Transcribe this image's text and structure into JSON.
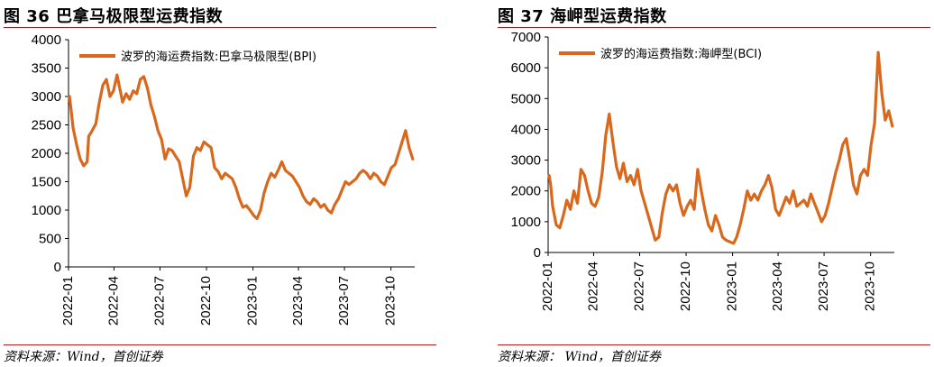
{
  "figures": [
    {
      "title": "图 36 巴拿马极限型运费指数",
      "source": "资料来源：Wind，首创证券"
    },
    {
      "title": "图 37 海岬型运费指数",
      "source": "资料来源： Wind，首创证券"
    }
  ],
  "chart_data": [
    {
      "type": "line",
      "legend_placement": "top-left",
      "series": [
        {
          "name": "波罗的海运费指数:巴拿马极限型(BPI)",
          "color": "#d9671c",
          "points": [
            [
              "2022-01-03",
              3000
            ],
            [
              "2022-01-06",
              2780
            ],
            [
              "2022-01-10",
              2450
            ],
            [
              "2022-01-17",
              2150
            ],
            [
              "2022-01-24",
              1900
            ],
            [
              "2022-01-31",
              1780
            ],
            [
              "2022-02-07",
              1850
            ],
            [
              "2022-02-10",
              2300
            ],
            [
              "2022-02-17",
              2400
            ],
            [
              "2022-02-24",
              2520
            ],
            [
              "2022-03-03",
              2900
            ],
            [
              "2022-03-10",
              3200
            ],
            [
              "2022-03-17",
              3300
            ],
            [
              "2022-03-24",
              3000
            ],
            [
              "2022-03-31",
              3100
            ],
            [
              "2022-04-07",
              3380
            ],
            [
              "2022-04-11",
              3200
            ],
            [
              "2022-04-18",
              2900
            ],
            [
              "2022-04-25",
              3050
            ],
            [
              "2022-05-02",
              2950
            ],
            [
              "2022-05-09",
              3100
            ],
            [
              "2022-05-16",
              3050
            ],
            [
              "2022-05-23",
              3300
            ],
            [
              "2022-05-30",
              3350
            ],
            [
              "2022-06-06",
              3150
            ],
            [
              "2022-06-13",
              2850
            ],
            [
              "2022-06-20",
              2650
            ],
            [
              "2022-06-27",
              2400
            ],
            [
              "2022-07-04",
              2250
            ],
            [
              "2022-07-11",
              1900
            ],
            [
              "2022-07-18",
              2080
            ],
            [
              "2022-07-25",
              2050
            ],
            [
              "2022-08-01",
              1950
            ],
            [
              "2022-08-08",
              1850
            ],
            [
              "2022-08-15",
              1550
            ],
            [
              "2022-08-22",
              1250
            ],
            [
              "2022-08-29",
              1400
            ],
            [
              "2022-09-05",
              1950
            ],
            [
              "2022-09-12",
              2100
            ],
            [
              "2022-09-19",
              2050
            ],
            [
              "2022-09-26",
              2200
            ],
            [
              "2022-10-03",
              2150
            ],
            [
              "2022-10-10",
              2100
            ],
            [
              "2022-10-17",
              1750
            ],
            [
              "2022-10-24",
              1680
            ],
            [
              "2022-10-31",
              1550
            ],
            [
              "2022-11-07",
              1650
            ],
            [
              "2022-11-14",
              1600
            ],
            [
              "2022-11-21",
              1550
            ],
            [
              "2022-11-28",
              1400
            ],
            [
              "2022-12-05",
              1200
            ],
            [
              "2022-12-12",
              1050
            ],
            [
              "2022-12-19",
              1080
            ],
            [
              "2022-12-26",
              1000
            ],
            [
              "2023-01-03",
              900
            ],
            [
              "2023-01-09",
              850
            ],
            [
              "2023-01-16",
              1000
            ],
            [
              "2023-01-23",
              1300
            ],
            [
              "2023-01-30",
              1500
            ],
            [
              "2023-02-06",
              1650
            ],
            [
              "2023-02-13",
              1580
            ],
            [
              "2023-02-20",
              1700
            ],
            [
              "2023-02-27",
              1850
            ],
            [
              "2023-03-06",
              1700
            ],
            [
              "2023-03-13",
              1650
            ],
            [
              "2023-03-20",
              1600
            ],
            [
              "2023-03-27",
              1500
            ],
            [
              "2023-04-03",
              1400
            ],
            [
              "2023-04-10",
              1250
            ],
            [
              "2023-04-17",
              1150
            ],
            [
              "2023-04-24",
              1100
            ],
            [
              "2023-05-01",
              1200
            ],
            [
              "2023-05-08",
              1150
            ],
            [
              "2023-05-15",
              1050
            ],
            [
              "2023-05-22",
              1100
            ],
            [
              "2023-05-29",
              1000
            ],
            [
              "2023-06-05",
              950
            ],
            [
              "2023-06-12",
              1100
            ],
            [
              "2023-06-19",
              1200
            ],
            [
              "2023-06-26",
              1350
            ],
            [
              "2023-07-03",
              1500
            ],
            [
              "2023-07-10",
              1450
            ],
            [
              "2023-07-17",
              1500
            ],
            [
              "2023-07-24",
              1550
            ],
            [
              "2023-07-31",
              1650
            ],
            [
              "2023-08-07",
              1700
            ],
            [
              "2023-08-14",
              1650
            ],
            [
              "2023-08-21",
              1550
            ],
            [
              "2023-08-28",
              1650
            ],
            [
              "2023-09-04",
              1600
            ],
            [
              "2023-09-11",
              1500
            ],
            [
              "2023-09-18",
              1450
            ],
            [
              "2023-09-25",
              1600
            ],
            [
              "2023-10-02",
              1750
            ],
            [
              "2023-10-09",
              1800
            ],
            [
              "2023-10-16",
              2000
            ],
            [
              "2023-10-23",
              2200
            ],
            [
              "2023-10-30",
              2400
            ],
            [
              "2023-11-06",
              2100
            ],
            [
              "2023-11-13",
              1900
            ]
          ]
        }
      ],
      "x_ticks": [
        "2022-01",
        "2022-04",
        "2022-07",
        "2022-10",
        "2023-01",
        "2023-04",
        "2023-07",
        "2023-10"
      ],
      "ylim": [
        0,
        4000
      ],
      "y_ticks": [
        "0",
        "500",
        "1000",
        "1500",
        "2000",
        "2500",
        "3000",
        "3500",
        "4000"
      ]
    },
    {
      "type": "line",
      "legend_placement": "top-left",
      "series": [
        {
          "name": "波罗的海运费指数:海岬型(BCI)",
          "color": "#d9671c",
          "points": [
            [
              "2022-01-03",
              2500
            ],
            [
              "2022-01-06",
              2200
            ],
            [
              "2022-01-10",
              1500
            ],
            [
              "2022-01-17",
              900
            ],
            [
              "2022-01-24",
              800
            ],
            [
              "2022-01-31",
              1200
            ],
            [
              "2022-02-07",
              1700
            ],
            [
              "2022-02-14",
              1400
            ],
            [
              "2022-02-21",
              2000
            ],
            [
              "2022-02-28",
              1600
            ],
            [
              "2022-03-07",
              2700
            ],
            [
              "2022-03-14",
              2500
            ],
            [
              "2022-03-21",
              2000
            ],
            [
              "2022-03-28",
              1600
            ],
            [
              "2022-04-04",
              1500
            ],
            [
              "2022-04-11",
              1800
            ],
            [
              "2022-04-18",
              2600
            ],
            [
              "2022-04-25",
              3800
            ],
            [
              "2022-05-02",
              4500
            ],
            [
              "2022-05-09",
              3600
            ],
            [
              "2022-05-16",
              2800
            ],
            [
              "2022-05-23",
              2400
            ],
            [
              "2022-05-30",
              2900
            ],
            [
              "2022-06-06",
              2300
            ],
            [
              "2022-06-13",
              2500
            ],
            [
              "2022-06-20",
              2200
            ],
            [
              "2022-06-27",
              2700
            ],
            [
              "2022-07-04",
              2000
            ],
            [
              "2022-07-11",
              1600
            ],
            [
              "2022-07-18",
              1200
            ],
            [
              "2022-07-25",
              800
            ],
            [
              "2022-08-01",
              400
            ],
            [
              "2022-08-08",
              500
            ],
            [
              "2022-08-15",
              1300
            ],
            [
              "2022-08-22",
              1900
            ],
            [
              "2022-08-29",
              2200
            ],
            [
              "2022-09-05",
              2000
            ],
            [
              "2022-09-12",
              2200
            ],
            [
              "2022-09-19",
              1600
            ],
            [
              "2022-09-26",
              1200
            ],
            [
              "2022-10-03",
              1500
            ],
            [
              "2022-10-10",
              1700
            ],
            [
              "2022-10-17",
              1400
            ],
            [
              "2022-10-24",
              2700
            ],
            [
              "2022-10-31",
              2000
            ],
            [
              "2022-11-07",
              1400
            ],
            [
              "2022-11-14",
              900
            ],
            [
              "2022-11-21",
              700
            ],
            [
              "2022-11-28",
              1200
            ],
            [
              "2022-12-05",
              900
            ],
            [
              "2022-12-12",
              500
            ],
            [
              "2022-12-19",
              400
            ],
            [
              "2022-12-26",
              350
            ],
            [
              "2023-01-03",
              300
            ],
            [
              "2023-01-09",
              500
            ],
            [
              "2023-01-16",
              900
            ],
            [
              "2023-01-23",
              1400
            ],
            [
              "2023-01-30",
              2000
            ],
            [
              "2023-02-06",
              1700
            ],
            [
              "2023-02-13",
              1900
            ],
            [
              "2023-02-20",
              1700
            ],
            [
              "2023-02-27",
              2000
            ],
            [
              "2023-03-06",
              2200
            ],
            [
              "2023-03-13",
              2500
            ],
            [
              "2023-03-20",
              2100
            ],
            [
              "2023-03-27",
              1400
            ],
            [
              "2023-04-03",
              1200
            ],
            [
              "2023-04-10",
              1500
            ],
            [
              "2023-04-17",
              1800
            ],
            [
              "2023-04-24",
              1600
            ],
            [
              "2023-05-01",
              2000
            ],
            [
              "2023-05-08",
              1500
            ],
            [
              "2023-05-15",
              1600
            ],
            [
              "2023-05-22",
              1700
            ],
            [
              "2023-05-29",
              1500
            ],
            [
              "2023-06-05",
              1900
            ],
            [
              "2023-06-12",
              1600
            ],
            [
              "2023-06-19",
              1300
            ],
            [
              "2023-06-26",
              1000
            ],
            [
              "2023-07-03",
              1200
            ],
            [
              "2023-07-10",
              1600
            ],
            [
              "2023-07-17",
              2100
            ],
            [
              "2023-07-24",
              2600
            ],
            [
              "2023-07-31",
              3000
            ],
            [
              "2023-08-07",
              3500
            ],
            [
              "2023-08-14",
              3700
            ],
            [
              "2023-08-21",
              3000
            ],
            [
              "2023-08-28",
              2200
            ],
            [
              "2023-09-04",
              1900
            ],
            [
              "2023-09-11",
              2500
            ],
            [
              "2023-09-18",
              2700
            ],
            [
              "2023-09-25",
              2500
            ],
            [
              "2023-10-02",
              3500
            ],
            [
              "2023-10-09",
              4200
            ],
            [
              "2023-10-16",
              6500
            ],
            [
              "2023-10-23",
              5200
            ],
            [
              "2023-10-30",
              4300
            ],
            [
              "2023-11-06",
              4600
            ],
            [
              "2023-11-13",
              4100
            ]
          ]
        }
      ],
      "x_ticks": [
        "2022-01",
        "2022-04",
        "2022-07",
        "2022-10",
        "2023-01",
        "2023-04",
        "2023-07",
        "2023-10"
      ],
      "ylim": [
        0,
        7000
      ],
      "y_ticks": [
        "0",
        "1000",
        "2000",
        "3000",
        "4000",
        "5000",
        "6000",
        "7000"
      ]
    }
  ]
}
